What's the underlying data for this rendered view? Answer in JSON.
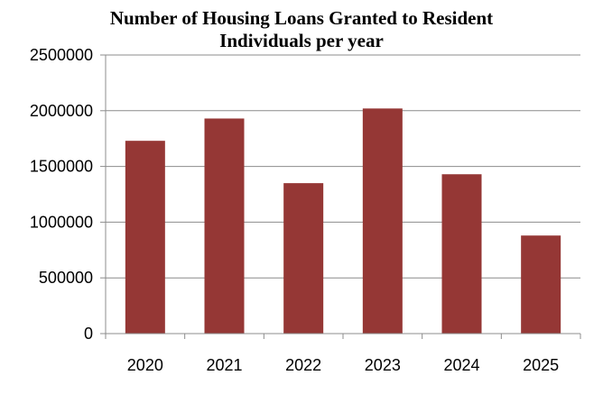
{
  "chart_data": {
    "type": "bar",
    "title_lines": [
      "Number of Housing Loans Granted to Resident",
      "Individuals per year"
    ],
    "categories": [
      "2020",
      "2021",
      "2022",
      "2023",
      "2024",
      "2025"
    ],
    "values": [
      1730000,
      1930000,
      1350000,
      2020000,
      1430000,
      880000
    ],
    "xlabel": "",
    "ylabel": "",
    "ylim": [
      0,
      2500000
    ],
    "yticks": [
      "0",
      "500000",
      "1000000",
      "1500000",
      "2000000",
      "2500000"
    ],
    "grid": true,
    "legend": "none",
    "bar_color": "#953735"
  }
}
